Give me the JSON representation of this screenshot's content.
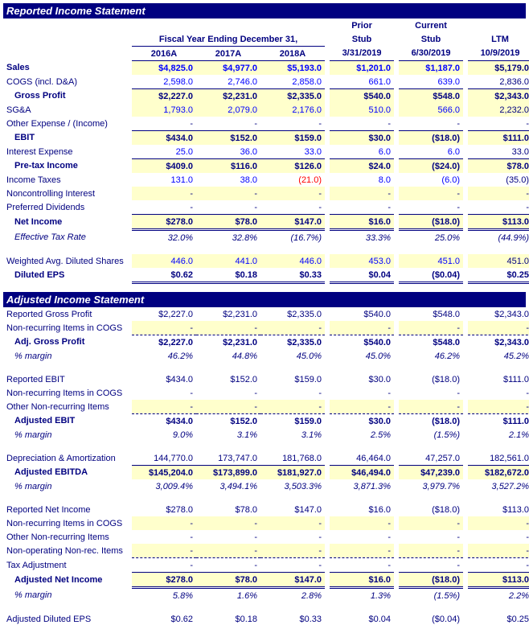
{
  "sections": {
    "reported_title": "Reported Income Statement",
    "adjusted_title": "Adjusted Income Statement"
  },
  "headers": {
    "fy_group": "Fiscal Year Ending December 31,",
    "prior_stub": "Prior Stub",
    "current_stub": "Current Stub",
    "ltm": "LTM",
    "cols": [
      "2016A",
      "2017A",
      "2018A",
      "3/31/2019",
      "6/30/2019",
      "10/9/2019"
    ]
  },
  "reported": {
    "sales": {
      "l": "Sales",
      "v": [
        "$4,825.0",
        "$4,977.0",
        "$5,193.0",
        "$1,201.0",
        "$1,187.0",
        "$5,179.0"
      ],
      "cls": [
        "blue",
        "blue",
        "blue",
        "blue",
        "blue",
        "navy"
      ],
      "bold": true,
      "hl": true
    },
    "cogs": {
      "l": "COGS (incl. D&A)",
      "v": [
        "2,598.0",
        "2,746.0",
        "2,858.0",
        "661.0",
        "639.0",
        "2,836.0"
      ],
      "cls": [
        "blue",
        "blue",
        "blue",
        "blue",
        "blue",
        "navy"
      ]
    },
    "gross_profit": {
      "l": "Gross Profit",
      "v": [
        "$2,227.0",
        "$2,231.0",
        "$2,335.0",
        "$540.0",
        "$548.0",
        "$2,343.0"
      ],
      "cls": [
        "navy",
        "navy",
        "navy",
        "navy",
        "navy",
        "navy"
      ],
      "bold": true,
      "top": true,
      "indent": 1,
      "hl": true
    },
    "sga": {
      "l": "SG&A",
      "v": [
        "1,793.0",
        "2,079.0",
        "2,176.0",
        "510.0",
        "566.0",
        "2,232.0"
      ],
      "cls": [
        "blue",
        "blue",
        "blue",
        "blue",
        "blue",
        "navy"
      ],
      "hl": true
    },
    "other_exp": {
      "l": "Other Expense / (Income)",
      "v": [
        "-",
        "-",
        "-",
        "-",
        "-",
        "-"
      ],
      "cls": [
        "navy",
        "navy",
        "navy",
        "navy",
        "navy",
        "navy"
      ]
    },
    "ebit": {
      "l": "EBIT",
      "v": [
        "$434.0",
        "$152.0",
        "$159.0",
        "$30.0",
        "($18.0)",
        "$111.0"
      ],
      "cls": [
        "navy",
        "navy",
        "navy",
        "navy",
        "navy",
        "navy"
      ],
      "bold": true,
      "top": true,
      "indent": 1,
      "hl": true
    },
    "interest": {
      "l": "Interest Expense",
      "v": [
        "25.0",
        "36.0",
        "33.0",
        "6.0",
        "6.0",
        "33.0"
      ],
      "cls": [
        "blue",
        "blue",
        "blue",
        "blue",
        "blue",
        "navy"
      ]
    },
    "pretax": {
      "l": "Pre-tax Income",
      "v": [
        "$409.0",
        "$116.0",
        "$126.0",
        "$24.0",
        "($24.0)",
        "$78.0"
      ],
      "cls": [
        "navy",
        "navy",
        "navy",
        "navy",
        "navy",
        "navy"
      ],
      "bold": true,
      "top": true,
      "indent": 1,
      "hl": true
    },
    "taxes": {
      "l": "Income Taxes",
      "v": [
        "131.0",
        "38.0",
        "(21.0)",
        "8.0",
        "(6.0)",
        "(35.0)"
      ],
      "cls": [
        "blue",
        "blue",
        "red",
        "blue",
        "blue",
        "navy"
      ]
    },
    "nci": {
      "l": "Noncontrolling Interest",
      "v": [
        "-",
        "-",
        "-",
        "-",
        "-",
        "-"
      ],
      "cls": [
        "navy",
        "navy",
        "navy",
        "navy",
        "navy",
        "navy"
      ],
      "hl": true
    },
    "pref": {
      "l": "Preferred Dividends",
      "v": [
        "-",
        "-",
        "-",
        "-",
        "-",
        "-"
      ],
      "cls": [
        "navy",
        "navy",
        "navy",
        "navy",
        "navy",
        "navy"
      ]
    },
    "net_income": {
      "l": "Net Income",
      "v": [
        "$278.0",
        "$78.0",
        "$147.0",
        "$16.0",
        "($18.0)",
        "$113.0"
      ],
      "cls": [
        "navy",
        "navy",
        "navy",
        "navy",
        "navy",
        "navy"
      ],
      "bold": true,
      "top": true,
      "dbl": true,
      "indent": 1,
      "hl": true
    },
    "tax_rate": {
      "l": "Effective Tax Rate",
      "v": [
        "32.0%",
        "32.8%",
        "(16.7%)",
        "33.3%",
        "25.0%",
        "(44.9%)"
      ],
      "cls": [
        "navy",
        "navy",
        "navy",
        "navy",
        "navy",
        "navy"
      ],
      "italic": true,
      "indent": 1
    },
    "shares": {
      "l": "Weighted Avg. Diluted Shares",
      "v": [
        "446.0",
        "441.0",
        "446.0",
        "453.0",
        "451.0",
        "451.0"
      ],
      "cls": [
        "blue",
        "blue",
        "blue",
        "blue",
        "blue",
        "navy"
      ],
      "hl": true
    },
    "eps": {
      "l": "Diluted EPS",
      "v": [
        "$0.62",
        "$0.18",
        "$0.33",
        "$0.04",
        "($0.04)",
        "$0.25"
      ],
      "cls": [
        "navy",
        "navy",
        "navy",
        "navy",
        "navy",
        "navy"
      ],
      "bold": true,
      "dbl": true,
      "indent": 1
    }
  },
  "adjusted": {
    "rep_gp": {
      "l": "Reported Gross Profit",
      "v": [
        "$2,227.0",
        "$2,231.0",
        "$2,335.0",
        "$540.0",
        "$548.0",
        "$2,343.0"
      ],
      "cls": [
        "navy",
        "navy",
        "navy",
        "navy",
        "navy",
        "navy"
      ]
    },
    "nri_cogs1": {
      "l": "Non-recurring Items in COGS",
      "v": [
        "-",
        "-",
        "-",
        "-",
        "-",
        "-"
      ],
      "cls": [
        "navy",
        "navy",
        "navy",
        "navy",
        "navy",
        "navy"
      ],
      "hl": true,
      "dash": true
    },
    "adj_gp": {
      "l": "Adj. Gross Profit",
      "v": [
        "$2,227.0",
        "$2,231.0",
        "$2,335.0",
        "$540.0",
        "$548.0",
        "$2,343.0"
      ],
      "cls": [
        "navy",
        "navy",
        "navy",
        "navy",
        "navy",
        "navy"
      ],
      "bold": true,
      "indent": 1
    },
    "gp_margin": {
      "l": "% margin",
      "v": [
        "46.2%",
        "44.8%",
        "45.0%",
        "45.0%",
        "46.2%",
        "45.2%"
      ],
      "cls": [
        "navy",
        "navy",
        "navy",
        "navy",
        "navy",
        "navy"
      ],
      "italic": true,
      "indent": 1
    },
    "rep_ebit": {
      "l": "Reported EBIT",
      "v": [
        "$434.0",
        "$152.0",
        "$159.0",
        "$30.0",
        "($18.0)",
        "$111.0"
      ],
      "cls": [
        "navy",
        "navy",
        "navy",
        "navy",
        "navy",
        "navy"
      ]
    },
    "nri_cogs2": {
      "l": "Non-recurring Items in COGS",
      "v": [
        "-",
        "-",
        "-",
        "-",
        "-",
        "-"
      ],
      "cls": [
        "navy",
        "navy",
        "navy",
        "navy",
        "navy",
        "navy"
      ]
    },
    "other_nri": {
      "l": "Other Non-recurring Items",
      "v": [
        "-",
        "-",
        "-",
        "-",
        "-",
        "-"
      ],
      "cls": [
        "navy",
        "navy",
        "navy",
        "navy",
        "navy",
        "navy"
      ],
      "hl": true,
      "dash": true
    },
    "adj_ebit": {
      "l": "Adjusted EBIT",
      "v": [
        "$434.0",
        "$152.0",
        "$159.0",
        "$30.0",
        "($18.0)",
        "$111.0"
      ],
      "cls": [
        "navy",
        "navy",
        "navy",
        "navy",
        "navy",
        "navy"
      ],
      "bold": true,
      "indent": 1
    },
    "ebit_margin": {
      "l": "% margin",
      "v": [
        "9.0%",
        "3.1%",
        "3.1%",
        "2.5%",
        "(1.5%)",
        "2.1%"
      ],
      "cls": [
        "navy",
        "navy",
        "navy",
        "navy",
        "navy",
        "navy"
      ],
      "italic": true,
      "indent": 1
    },
    "da": {
      "l": "Depreciation & Amortization",
      "v": [
        "144,770.0",
        "173,747.0",
        "181,768.0",
        "46,464.0",
        "47,257.0",
        "182,561.0"
      ],
      "cls": [
        "navy",
        "navy",
        "navy",
        "navy",
        "navy",
        "navy"
      ]
    },
    "adj_ebitda": {
      "l": "Adjusted EBITDA",
      "v": [
        "$145,204.0",
        "$173,899.0",
        "$181,927.0",
        "$46,494.0",
        "$47,239.0",
        "$182,672.0"
      ],
      "cls": [
        "navy",
        "navy",
        "navy",
        "navy",
        "navy",
        "navy"
      ],
      "bold": true,
      "top": true,
      "indent": 1,
      "hl": true
    },
    "ebitda_margin": {
      "l": "% margin",
      "v": [
        "3,009.4%",
        "3,494.1%",
        "3,503.3%",
        "3,871.3%",
        "3,979.7%",
        "3,527.2%"
      ],
      "cls": [
        "navy",
        "navy",
        "navy",
        "navy",
        "navy",
        "navy"
      ],
      "italic": true,
      "indent": 1
    },
    "rep_ni": {
      "l": "Reported Net Income",
      "v": [
        "$278.0",
        "$78.0",
        "$147.0",
        "$16.0",
        "($18.0)",
        "$113.0"
      ],
      "cls": [
        "navy",
        "navy",
        "navy",
        "navy",
        "navy",
        "navy"
      ]
    },
    "nri_cogs3": {
      "l": "Non-recurring Items in COGS",
      "v": [
        "-",
        "-",
        "-",
        "-",
        "-",
        "-"
      ],
      "cls": [
        "navy",
        "navy",
        "navy",
        "navy",
        "navy",
        "navy"
      ],
      "hl": true
    },
    "other_nri2": {
      "l": "Other Non-recurring Items",
      "v": [
        "-",
        "-",
        "-",
        "-",
        "-",
        "-"
      ],
      "cls": [
        "navy",
        "navy",
        "navy",
        "navy",
        "navy",
        "navy"
      ]
    },
    "nonop_nri": {
      "l": "Non-operating Non-rec. Items",
      "v": [
        "-",
        "-",
        "-",
        "-",
        "-",
        "-"
      ],
      "cls": [
        "navy",
        "navy",
        "navy",
        "navy",
        "navy",
        "navy"
      ],
      "hl": true,
      "dash": true
    },
    "tax_adj": {
      "l": "Tax Adjustment",
      "v": [
        "-",
        "-",
        "-",
        "-",
        "-",
        "-"
      ],
      "cls": [
        "navy",
        "navy",
        "navy",
        "navy",
        "navy",
        "navy"
      ]
    },
    "adj_ni": {
      "l": "Adjusted Net Income",
      "v": [
        "$278.0",
        "$78.0",
        "$147.0",
        "$16.0",
        "($18.0)",
        "$113.0"
      ],
      "cls": [
        "navy",
        "navy",
        "navy",
        "navy",
        "navy",
        "navy"
      ],
      "bold": true,
      "top": true,
      "dbl": true,
      "indent": 1,
      "hl": true
    },
    "ni_margin": {
      "l": "% margin",
      "v": [
        "5.8%",
        "1.6%",
        "2.8%",
        "1.3%",
        "(1.5%)",
        "2.2%"
      ],
      "cls": [
        "navy",
        "navy",
        "navy",
        "navy",
        "navy",
        "navy"
      ],
      "italic": true,
      "indent": 1
    },
    "adj_eps": {
      "l": "Adjusted Diluted EPS",
      "v": [
        "$0.62",
        "$0.18",
        "$0.33",
        "$0.04",
        "($0.04)",
        "$0.25"
      ],
      "cls": [
        "navy",
        "navy",
        "navy",
        "navy",
        "navy",
        "navy"
      ]
    }
  },
  "layout": {
    "reported_order": [
      "sales",
      "cogs",
      "gross_profit",
      "sga",
      "other_exp",
      "ebit",
      "interest",
      "pretax",
      "taxes",
      "nci",
      "pref",
      "net_income",
      "tax_rate",
      "GAP",
      "shares",
      "eps"
    ],
    "adjusted_order": [
      "rep_gp",
      "nri_cogs1",
      "adj_gp",
      "gp_margin",
      "GAP",
      "rep_ebit",
      "nri_cogs2",
      "other_nri",
      "adj_ebit",
      "ebit_margin",
      "GAP",
      "da",
      "adj_ebitda",
      "ebitda_margin",
      "GAP",
      "rep_ni",
      "nri_cogs3",
      "other_nri2",
      "nonop_nri",
      "tax_adj",
      "adj_ni",
      "ni_margin",
      "GAP",
      "adj_eps"
    ]
  }
}
